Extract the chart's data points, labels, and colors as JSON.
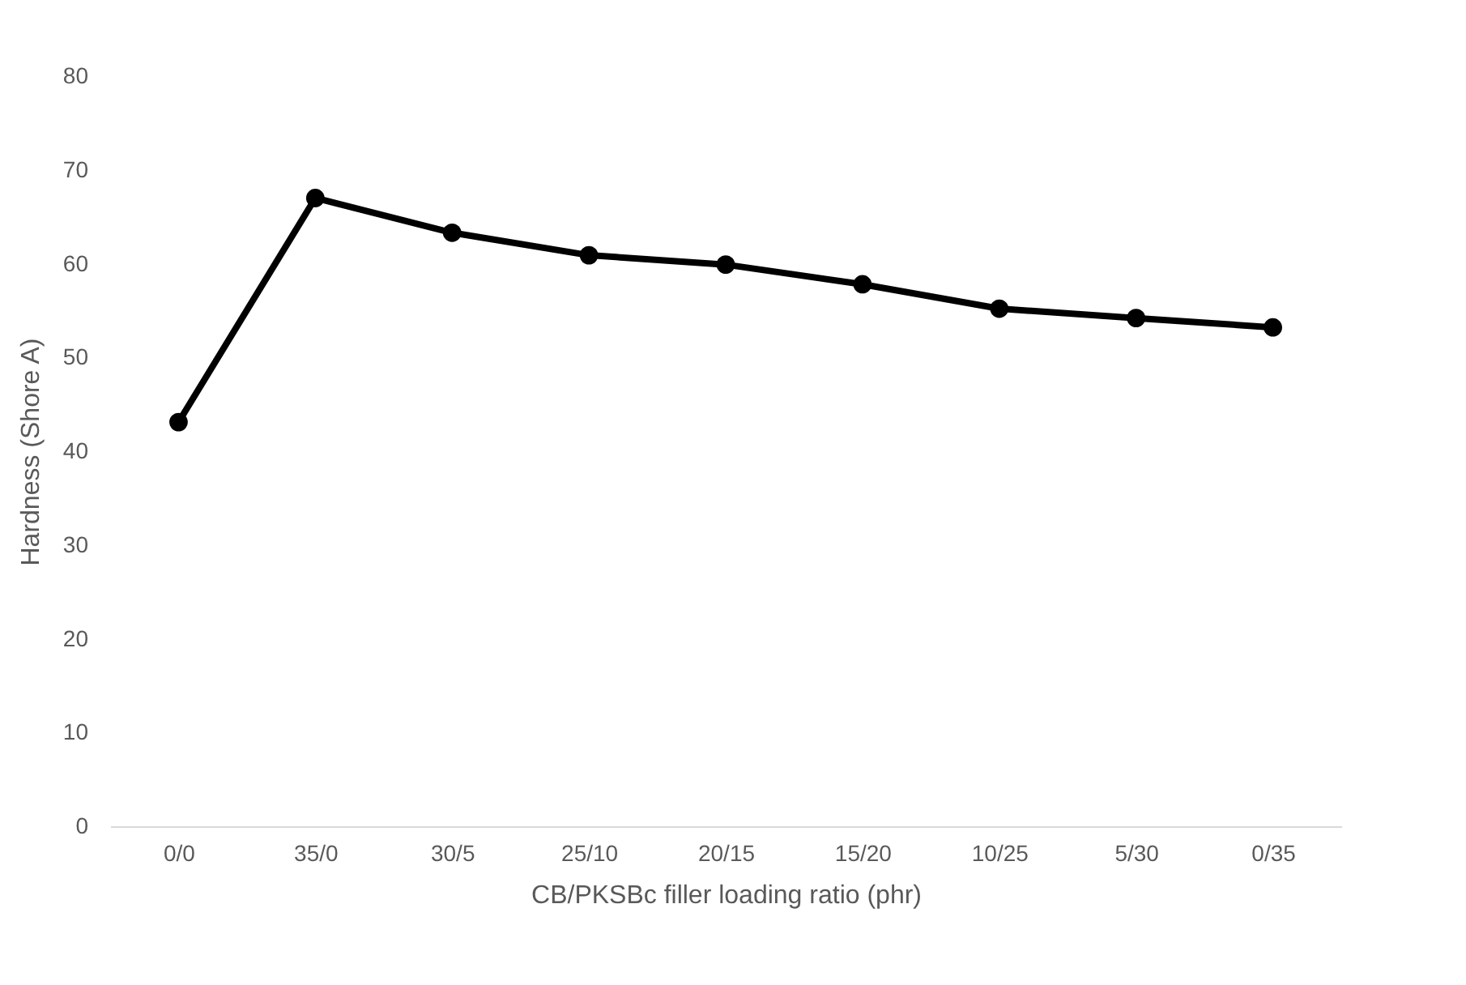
{
  "chart_data": {
    "type": "line",
    "xlabel": "CB/PKSBc filler loading ratio (phr)",
    "ylabel": "Hardness (Shore A)",
    "categories": [
      "0/0",
      "35/0",
      "30/5",
      "25/10",
      "20/15",
      "15/20",
      "10/25",
      "5/30",
      "0/35"
    ],
    "series": [
      {
        "color": "#000000",
        "values": [
          43.1,
          67.0,
          63.3,
          60.9,
          59.9,
          57.8,
          55.2,
          54.2,
          53.2
        ]
      }
    ],
    "ylim": [
      0,
      80
    ],
    "yticks": [
      0,
      10,
      20,
      30,
      40,
      50,
      60,
      70,
      80
    ],
    "grid": false,
    "legend": false,
    "marker": "circle",
    "line_style": "solid"
  }
}
